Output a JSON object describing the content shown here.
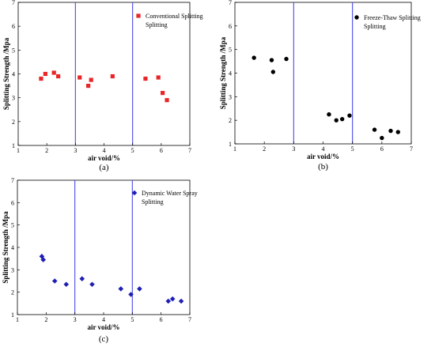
{
  "chart_data": [
    {
      "type": "scatter",
      "panel_label": "(a)",
      "xlabel": "air void/%",
      "ylabel": "Splitting Strength /Mpa",
      "xlim": [
        1,
        7
      ],
      "ylim": [
        1,
        7
      ],
      "xticks": [
        "1",
        "2",
        "3",
        "4",
        "5",
        "6",
        "7"
      ],
      "yticks": [
        "1",
        "2",
        "3",
        "4",
        "5",
        "6",
        "7"
      ],
      "vlines": [
        3,
        5
      ],
      "legend_placement": "top-right",
      "series": [
        {
          "name": "Conventional Splitting",
          "legend_line2": "Splitting",
          "marker": "square",
          "color": "#e8262a",
          "x": [
            1.8,
            1.95,
            2.25,
            2.4,
            3.15,
            3.45,
            3.55,
            4.3,
            5.45,
            5.9,
            6.05,
            6.2
          ],
          "y": [
            3.8,
            4.0,
            4.05,
            3.9,
            3.85,
            3.5,
            3.75,
            3.9,
            3.8,
            3.85,
            3.2,
            2.9
          ]
        }
      ]
    },
    {
      "type": "scatter",
      "panel_label": "(b)",
      "xlabel": "air void/%",
      "ylabel": "Splitting Strength /Mpa",
      "xlim": [
        1,
        7
      ],
      "ylim": [
        1,
        7
      ],
      "xticks": [
        "1",
        "2",
        "3",
        "4",
        "5",
        "6",
        "7"
      ],
      "yticks": [
        "1",
        "2",
        "3",
        "4",
        "5",
        "6",
        "7"
      ],
      "vlines": [
        3,
        5
      ],
      "legend_placement": "top-right",
      "series": [
        {
          "name": "Freeze-Thaw Splitting",
          "legend_line2": "Splitting",
          "marker": "circle",
          "color": "#000000",
          "x": [
            1.65,
            2.25,
            2.3,
            2.75,
            4.2,
            4.45,
            4.65,
            4.9,
            5.75,
            6.0,
            6.3,
            6.55
          ],
          "y": [
            4.65,
            4.55,
            4.05,
            4.6,
            2.25,
            2.0,
            2.05,
            2.2,
            1.6,
            1.25,
            1.55,
            1.5
          ]
        }
      ]
    },
    {
      "type": "scatter",
      "panel_label": "(c)",
      "xlabel": "air void/%",
      "ylabel": "Splitting Strength /Mpa",
      "xlim": [
        1,
        7
      ],
      "ylim": [
        1,
        7
      ],
      "xticks": [
        "1",
        "2",
        "3",
        "4",
        "5",
        "6",
        "7"
      ],
      "yticks": [
        "1",
        "2",
        "3",
        "4",
        "5",
        "6",
        "7"
      ],
      "vlines": [
        3,
        5
      ],
      "legend_placement": "top-right",
      "series": [
        {
          "name": "Dynamic Water Spray",
          "legend_line2": "Splitting",
          "marker": "diamond",
          "color": "#1f1fb4",
          "x": [
            1.85,
            1.9,
            2.3,
            2.7,
            3.25,
            3.6,
            4.6,
            4.95,
            5.25,
            6.25,
            6.4,
            6.7
          ],
          "y": [
            3.6,
            3.45,
            2.5,
            2.35,
            2.6,
            2.35,
            2.15,
            1.9,
            2.15,
            1.6,
            1.7,
            1.6
          ]
        }
      ]
    }
  ]
}
